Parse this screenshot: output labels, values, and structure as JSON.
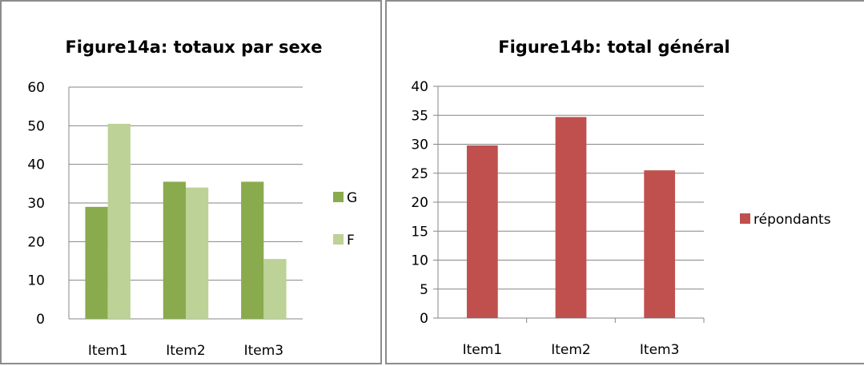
{
  "chart_data": [
    {
      "type": "bar",
      "title": "Figure14a: totaux par sexe",
      "categories": [
        "Item1",
        "Item2",
        "Item3"
      ],
      "series": [
        {
          "name": "G",
          "values": [
            29,
            35.5,
            35.5
          ],
          "color": "#8aaa4e"
        },
        {
          "name": "F",
          "values": [
            50.5,
            34,
            15.5
          ],
          "color": "#bcd296"
        }
      ],
      "yticks": [
        "0",
        "10",
        "20",
        "30",
        "40",
        "50",
        "60"
      ],
      "ylim": [
        0,
        60
      ],
      "grid": true,
      "legend": "right"
    },
    {
      "type": "bar",
      "title": "Figure14b: total général",
      "categories": [
        "Item1",
        "Item2",
        "Item3"
      ],
      "series": [
        {
          "name": "répondants",
          "values": [
            29.8,
            34.7,
            25.5
          ],
          "color": "#c0504d"
        }
      ],
      "yticks": [
        "0",
        "5",
        "10",
        "15",
        "20",
        "25",
        "30",
        "35",
        "40"
      ],
      "ylim": [
        0,
        40
      ],
      "grid": true,
      "legend": "right"
    }
  ]
}
